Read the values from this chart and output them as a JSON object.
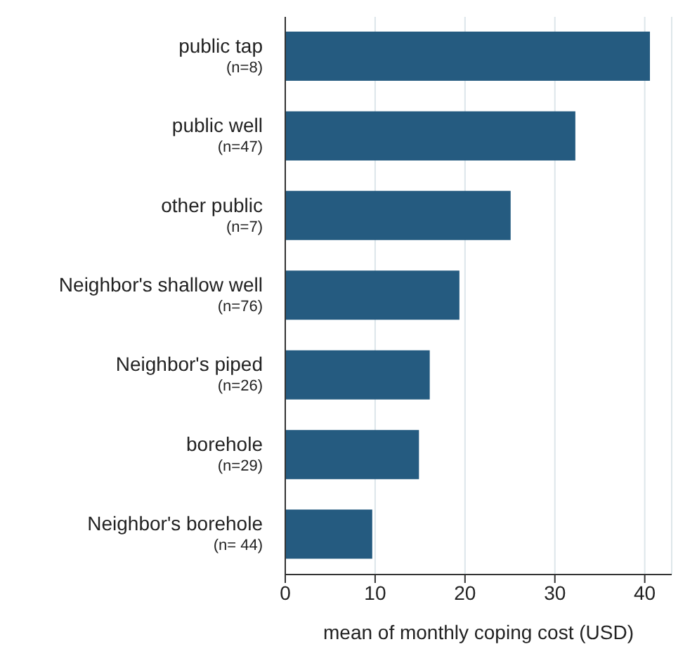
{
  "chart_data": {
    "type": "bar",
    "orientation": "horizontal",
    "categories": [
      "public tap\n(n=8)",
      "public well\n(n=47)",
      "other public\n(n=7)",
      "Neighbor's shallow well\n(n=76)",
      "Neighbor's piped\n(n=26)",
      "borehole\n(n=29)",
      "Neighbor's borehole\n(n= 44)"
    ],
    "values": [
      40.5,
      32.2,
      25.0,
      19.3,
      16.0,
      14.8,
      9.6
    ],
    "color": "#255b80",
    "xlabel": "mean of monthly coping cost (USD)",
    "xlim": [
      0,
      43
    ],
    "xticks": [
      0,
      10,
      20,
      30,
      40
    ],
    "grid": "x"
  }
}
